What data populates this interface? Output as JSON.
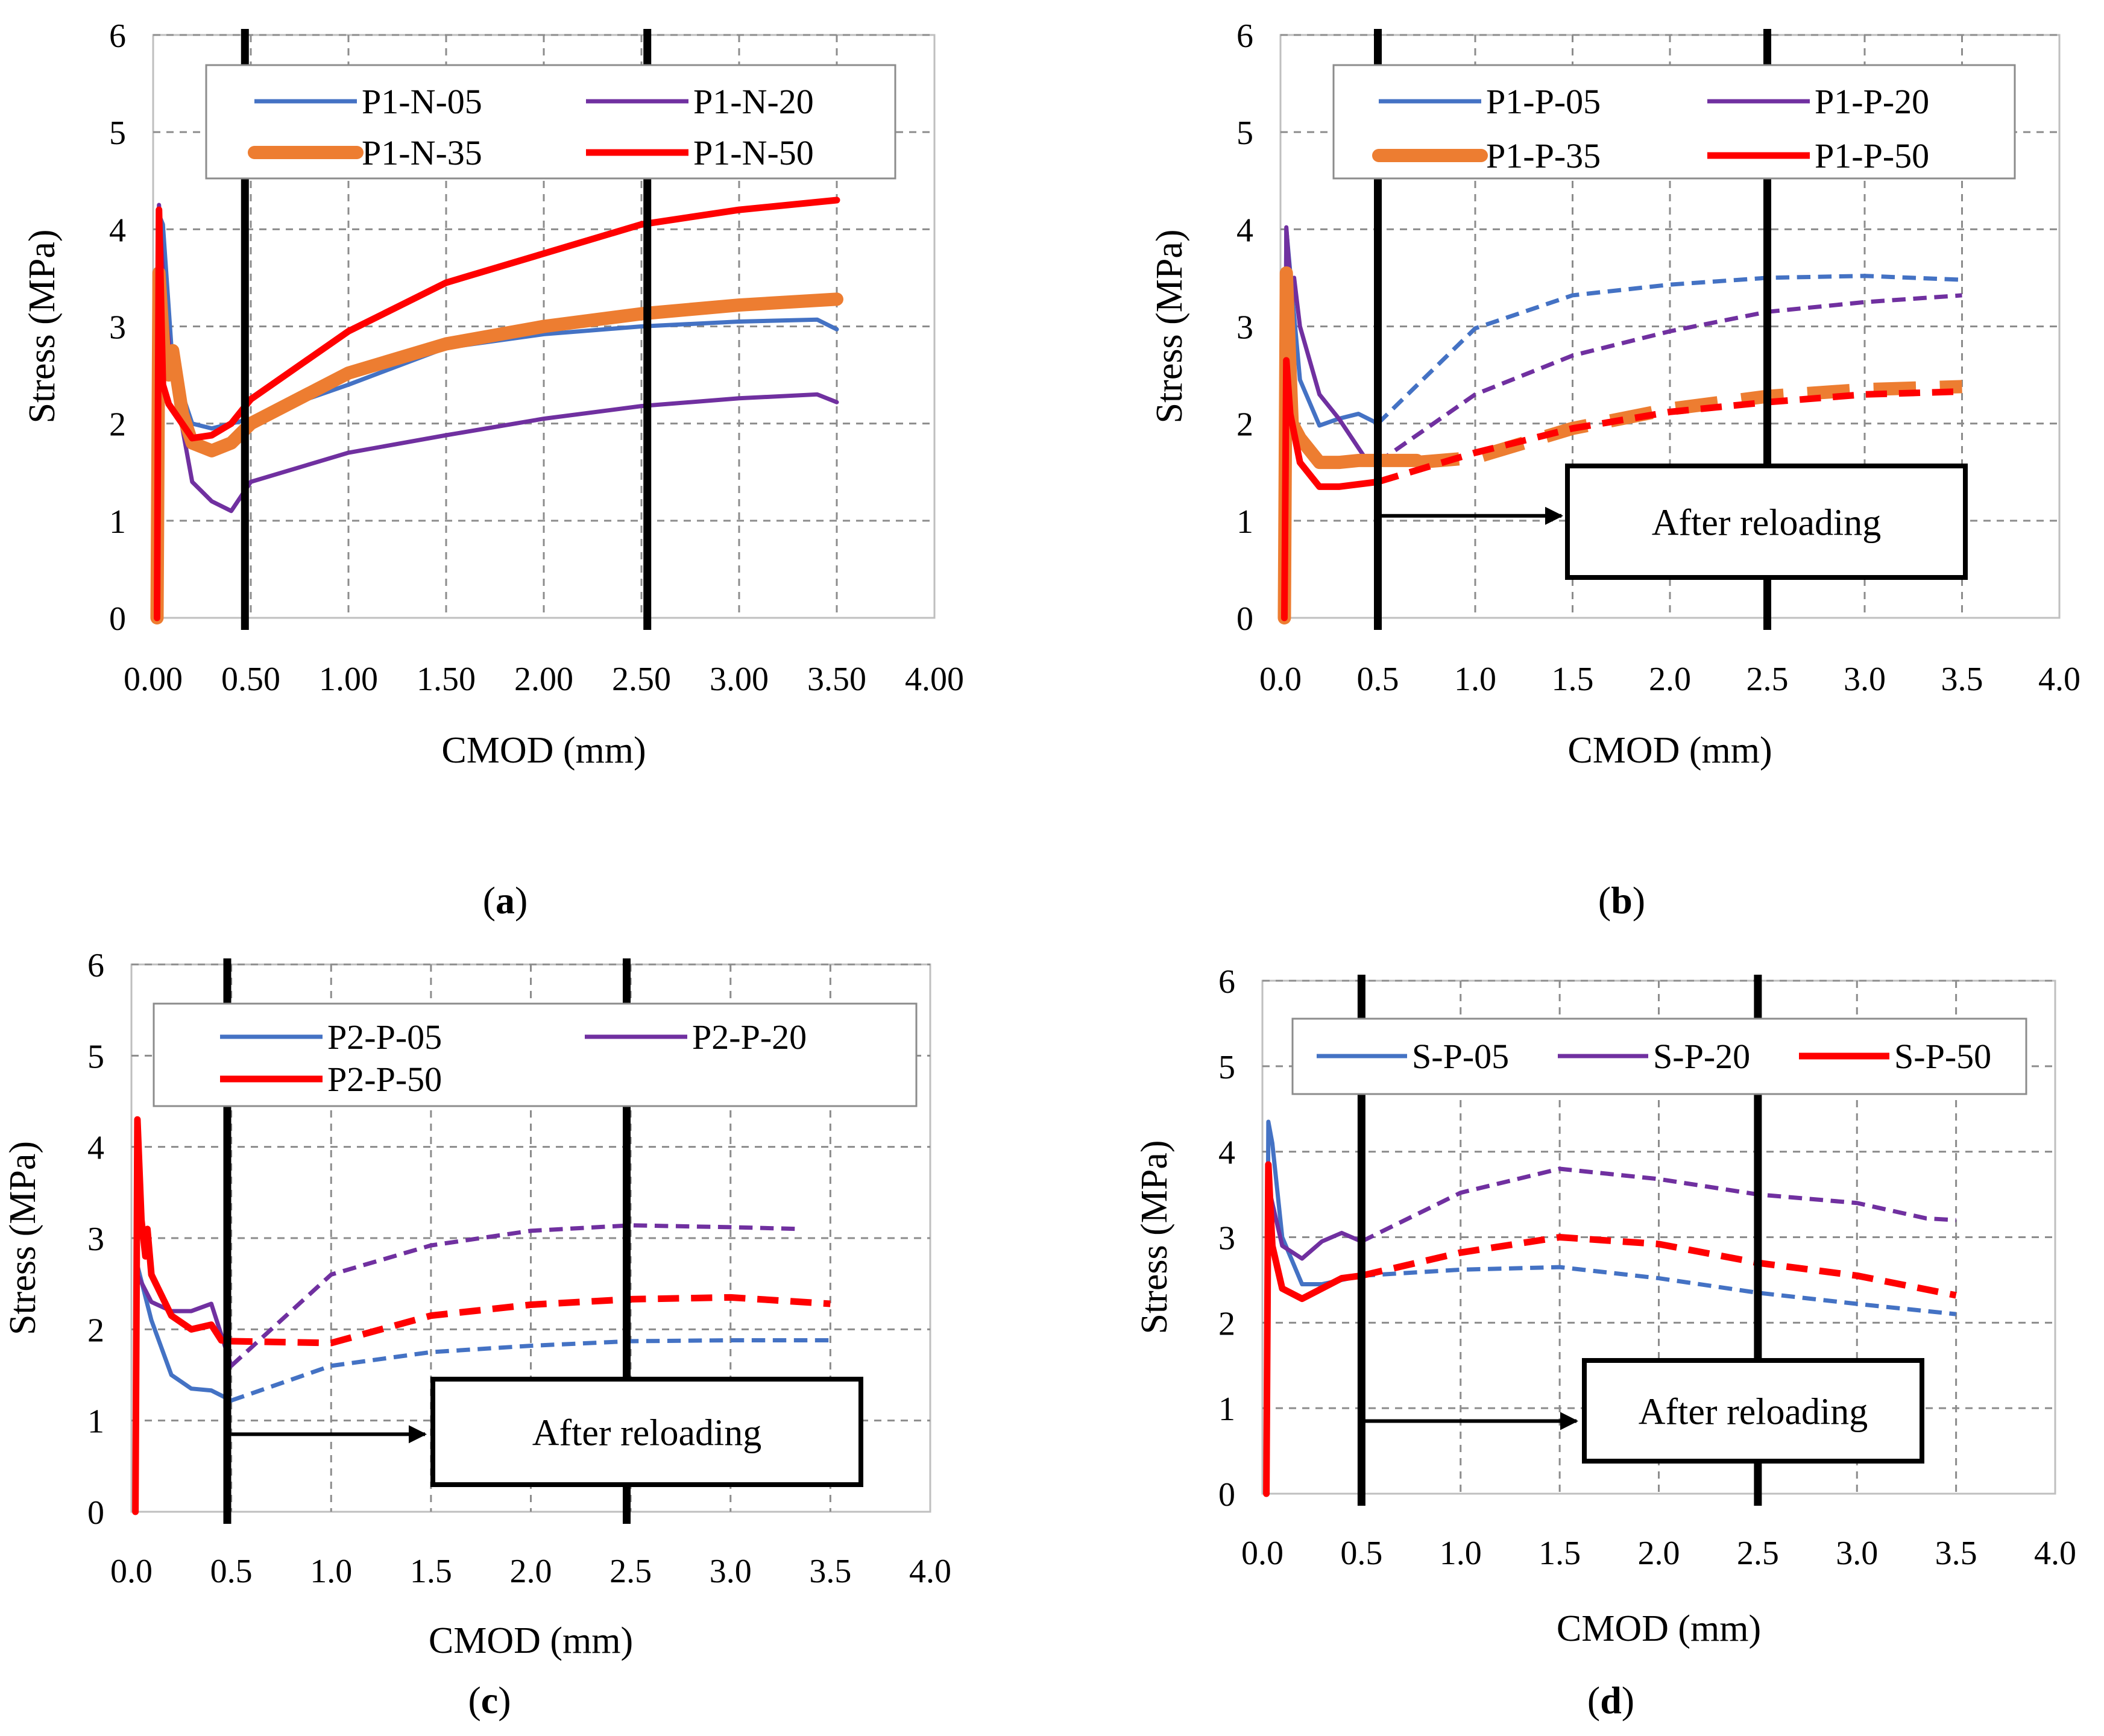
{
  "colors": {
    "blue": "#4472C4",
    "purple": "#7030A0",
    "orange": "#ED7D31",
    "red": "#FF0000",
    "grid": "#8C8C8C",
    "axis": "#BFBFBF",
    "marker": "#000000"
  },
  "chart_data": [
    {
      "panel_label": "a",
      "type": "line",
      "xlabel": "CMOD (mm)",
      "ylabel": "Stress (MPa)",
      "xlim": [
        0,
        4
      ],
      "ylim": [
        0,
        6
      ],
      "xticks": [
        "0.00",
        "0.50",
        "1.00",
        "1.50",
        "2.00",
        "2.50",
        "3.00",
        "3.50",
        "4.00"
      ],
      "yticks": [
        "0",
        "1",
        "2",
        "3",
        "4",
        "5",
        "6"
      ],
      "grid": true,
      "legend_columns": 2,
      "vertical_markers": [
        0.47,
        2.53
      ],
      "annotation": null,
      "series": [
        {
          "name": "P1-N-05",
          "color": "blue",
          "width": "thin",
          "points": [
            [
              0.02,
              0
            ],
            [
              0.03,
              4.15
            ],
            [
              0.05,
              4.05
            ],
            [
              0.1,
              2.6
            ],
            [
              0.2,
              2.0
            ],
            [
              0.3,
              1.95
            ],
            [
              0.4,
              2.0
            ],
            [
              0.5,
              2.05
            ],
            [
              1.0,
              2.4
            ],
            [
              1.5,
              2.78
            ],
            [
              2.0,
              2.92
            ],
            [
              2.5,
              3.0
            ],
            [
              3.0,
              3.05
            ],
            [
              3.4,
              3.07
            ],
            [
              3.5,
              2.97
            ]
          ]
        },
        {
          "name": "P1-N-20",
          "color": "purple",
          "width": "thin",
          "points": [
            [
              0.02,
              0
            ],
            [
              0.03,
              4.25
            ],
            [
              0.06,
              3.2
            ],
            [
              0.1,
              2.5
            ],
            [
              0.2,
              1.4
            ],
            [
              0.3,
              1.2
            ],
            [
              0.4,
              1.1
            ],
            [
              0.5,
              1.4
            ],
            [
              1.0,
              1.7
            ],
            [
              1.5,
              1.88
            ],
            [
              2.0,
              2.05
            ],
            [
              2.5,
              2.18
            ],
            [
              3.0,
              2.26
            ],
            [
              3.4,
              2.3
            ],
            [
              3.5,
              2.22
            ]
          ]
        },
        {
          "name": "P1-N-35",
          "color": "orange",
          "width": "thick",
          "points": [
            [
              0.02,
              0
            ],
            [
              0.03,
              3.55
            ],
            [
              0.06,
              2.6
            ],
            [
              0.08,
              2.5
            ],
            [
              0.1,
              2.75
            ],
            [
              0.15,
              2.1
            ],
            [
              0.2,
              1.8
            ],
            [
              0.3,
              1.72
            ],
            [
              0.4,
              1.8
            ],
            [
              0.45,
              1.9
            ],
            [
              0.5,
              2.0
            ],
            [
              1.0,
              2.52
            ],
            [
              1.5,
              2.82
            ],
            [
              2.0,
              3.0
            ],
            [
              2.5,
              3.13
            ],
            [
              3.0,
              3.22
            ],
            [
              3.5,
              3.28
            ]
          ]
        },
        {
          "name": "P1-N-50",
          "color": "red",
          "width": "medium",
          "points": [
            [
              0.02,
              0
            ],
            [
              0.03,
              4.2
            ],
            [
              0.05,
              2.4
            ],
            [
              0.08,
              2.2
            ],
            [
              0.2,
              1.85
            ],
            [
              0.3,
              1.88
            ],
            [
              0.4,
              2.0
            ],
            [
              0.5,
              2.25
            ],
            [
              1.0,
              2.95
            ],
            [
              1.5,
              3.45
            ],
            [
              2.0,
              3.75
            ],
            [
              2.5,
              4.05
            ],
            [
              3.0,
              4.2
            ],
            [
              3.5,
              4.3
            ]
          ]
        }
      ]
    },
    {
      "panel_label": "b",
      "type": "line",
      "xlabel": "CMOD (mm)",
      "ylabel": "Stress (MPa)",
      "xlim": [
        0,
        4
      ],
      "ylim": [
        0,
        6
      ],
      "xticks": [
        "0.0",
        "0.5",
        "1.0",
        "1.5",
        "2.0",
        "2.5",
        "3.0",
        "3.5",
        "4.0"
      ],
      "yticks": [
        "0",
        "1",
        "2",
        "3",
        "4",
        "5",
        "6"
      ],
      "grid": true,
      "legend_columns": 2,
      "vertical_markers": [
        0.5,
        2.5
      ],
      "annotation": {
        "text": "After reloading"
      },
      "series": [
        {
          "name": "P1-P-05",
          "color": "blue",
          "width": "thin",
          "points": [
            [
              0.02,
              0
            ],
            [
              0.03,
              4.0
            ],
            [
              0.1,
              2.45
            ],
            [
              0.2,
              1.98
            ],
            [
              0.3,
              2.05
            ],
            [
              0.4,
              2.1
            ],
            [
              0.5,
              2.0
            ]
          ],
          "reload_points": [
            [
              0.5,
              2.0
            ],
            [
              1.0,
              2.98
            ],
            [
              1.5,
              3.32
            ],
            [
              2.0,
              3.43
            ],
            [
              2.5,
              3.5
            ],
            [
              3.0,
              3.52
            ],
            [
              3.5,
              3.48
            ]
          ]
        },
        {
          "name": "P1-P-20",
          "color": "purple",
          "width": "thin",
          "points": [
            [
              0.02,
              0
            ],
            [
              0.03,
              4.02
            ],
            [
              0.06,
              3.2
            ],
            [
              0.07,
              3.5
            ],
            [
              0.1,
              3.0
            ],
            [
              0.2,
              2.3
            ],
            [
              0.3,
              2.05
            ],
            [
              0.45,
              1.6
            ]
          ],
          "reload_points": [
            [
              0.5,
              1.6
            ],
            [
              1.0,
              2.3
            ],
            [
              1.5,
              2.7
            ],
            [
              2.0,
              2.95
            ],
            [
              2.5,
              3.15
            ],
            [
              3.0,
              3.25
            ],
            [
              3.5,
              3.32
            ]
          ]
        },
        {
          "name": "P1-P-35",
          "color": "orange",
          "width": "thick",
          "points": [
            [
              0.02,
              0
            ],
            [
              0.03,
              3.55
            ],
            [
              0.06,
              2.0
            ],
            [
              0.1,
              1.85
            ],
            [
              0.2,
              1.6
            ],
            [
              0.3,
              1.6
            ],
            [
              0.4,
              1.62
            ],
            [
              0.5,
              1.62
            ],
            [
              0.7,
              1.62
            ]
          ],
          "reload_points": [
            [
              0.7,
              1.6
            ],
            [
              1.0,
              1.65
            ],
            [
              1.5,
              1.95
            ],
            [
              2.0,
              2.15
            ],
            [
              2.5,
              2.28
            ],
            [
              3.0,
              2.35
            ],
            [
              3.5,
              2.38
            ]
          ]
        },
        {
          "name": "P1-P-50",
          "color": "red",
          "width": "medium",
          "points": [
            [
              0.02,
              0
            ],
            [
              0.03,
              2.65
            ],
            [
              0.05,
              2.1
            ],
            [
              0.1,
              1.6
            ],
            [
              0.2,
              1.35
            ],
            [
              0.3,
              1.35
            ],
            [
              0.5,
              1.4
            ]
          ],
          "reload_points": [
            [
              0.5,
              1.4
            ],
            [
              1.0,
              1.7
            ],
            [
              1.5,
              1.95
            ],
            [
              2.0,
              2.12
            ],
            [
              2.5,
              2.22
            ],
            [
              3.0,
              2.3
            ],
            [
              3.5,
              2.33
            ]
          ]
        }
      ]
    },
    {
      "panel_label": "c",
      "type": "line",
      "xlabel": "CMOD (mm)",
      "ylabel": "Stress (MPa)",
      "xlim": [
        0,
        4
      ],
      "ylim": [
        0,
        6
      ],
      "xticks": [
        "0.0",
        "0.5",
        "1.0",
        "1.5",
        "2.0",
        "2.5",
        "3.0",
        "3.5",
        "4.0"
      ],
      "yticks": [
        "0",
        "1",
        "2",
        "3",
        "4",
        "5",
        "6"
      ],
      "grid": true,
      "legend_columns": 2,
      "vertical_markers": [
        0.48,
        2.48
      ],
      "annotation": {
        "text": "After reloading"
      },
      "series": [
        {
          "name": "P2-P-05",
          "color": "blue",
          "width": "thin",
          "points": [
            [
              0.02,
              0
            ],
            [
              0.03,
              2.7
            ],
            [
              0.1,
              2.1
            ],
            [
              0.2,
              1.5
            ],
            [
              0.3,
              1.35
            ],
            [
              0.4,
              1.33
            ],
            [
              0.5,
              1.22
            ]
          ],
          "reload_points": [
            [
              0.5,
              1.22
            ],
            [
              1.0,
              1.6
            ],
            [
              1.5,
              1.75
            ],
            [
              2.0,
              1.82
            ],
            [
              2.5,
              1.87
            ],
            [
              3.0,
              1.88
            ],
            [
              3.5,
              1.88
            ]
          ]
        },
        {
          "name": "P2-P-20",
          "color": "purple",
          "width": "thin",
          "points": [
            [
              0.02,
              0
            ],
            [
              0.03,
              2.6
            ],
            [
              0.1,
              2.3
            ],
            [
              0.2,
              2.2
            ],
            [
              0.3,
              2.2
            ],
            [
              0.4,
              2.28
            ],
            [
              0.5,
              1.6
            ]
          ],
          "reload_points": [
            [
              0.5,
              1.6
            ],
            [
              1.0,
              2.6
            ],
            [
              1.5,
              2.92
            ],
            [
              2.0,
              3.08
            ],
            [
              2.5,
              3.14
            ],
            [
              3.0,
              3.12
            ],
            [
              3.35,
              3.1
            ]
          ]
        },
        {
          "name": "P2-P-50",
          "color": "red",
          "width": "medium",
          "points": [
            [
              0.02,
              0
            ],
            [
              0.03,
              4.3
            ],
            [
              0.05,
              3.2
            ],
            [
              0.07,
              2.8
            ],
            [
              0.08,
              3.1
            ],
            [
              0.1,
              2.6
            ],
            [
              0.2,
              2.15
            ],
            [
              0.3,
              2.0
            ],
            [
              0.4,
              2.05
            ],
            [
              0.45,
              1.88
            ],
            [
              0.5,
              1.87
            ]
          ],
          "reload_points": [
            [
              0.5,
              1.87
            ],
            [
              1.0,
              1.85
            ],
            [
              1.5,
              2.15
            ],
            [
              2.0,
              2.27
            ],
            [
              2.5,
              2.33
            ],
            [
              3.0,
              2.35
            ],
            [
              3.5,
              2.28
            ]
          ]
        }
      ]
    },
    {
      "panel_label": "d",
      "type": "line",
      "xlabel": "CMOD (mm)",
      "ylabel": "Stress (MPa)",
      "xlim": [
        0,
        4
      ],
      "ylim": [
        0,
        6
      ],
      "xticks": [
        "0.0",
        "0.5",
        "1.0",
        "1.5",
        "2.0",
        "2.5",
        "3.0",
        "3.5",
        "4.0"
      ],
      "yticks": [
        "0",
        "1",
        "2",
        "3",
        "4",
        "5",
        "6"
      ],
      "grid": true,
      "legend_columns": 3,
      "vertical_markers": [
        0.5,
        2.5
      ],
      "annotation": {
        "text": "After reloading"
      },
      "series": [
        {
          "name": "S-P-05",
          "color": "blue",
          "width": "thin",
          "points": [
            [
              0.02,
              0
            ],
            [
              0.03,
              4.35
            ],
            [
              0.05,
              4.1
            ],
            [
              0.1,
              3.0
            ],
            [
              0.2,
              2.45
            ],
            [
              0.3,
              2.45
            ],
            [
              0.5,
              2.55
            ]
          ],
          "reload_points": [
            [
              0.5,
              2.55
            ],
            [
              1.0,
              2.62
            ],
            [
              1.5,
              2.65
            ],
            [
              2.0,
              2.52
            ],
            [
              2.5,
              2.35
            ],
            [
              3.0,
              2.22
            ],
            [
              3.5,
              2.1
            ]
          ]
        },
        {
          "name": "S-P-20",
          "color": "purple",
          "width": "thin",
          "points": [
            [
              0.02,
              0
            ],
            [
              0.03,
              3.6
            ],
            [
              0.1,
              2.9
            ],
            [
              0.2,
              2.75
            ],
            [
              0.3,
              2.95
            ],
            [
              0.4,
              3.05
            ],
            [
              0.5,
              2.95
            ]
          ],
          "reload_points": [
            [
              0.5,
              2.95
            ],
            [
              1.0,
              3.52
            ],
            [
              1.5,
              3.8
            ],
            [
              2.0,
              3.68
            ],
            [
              2.5,
              3.5
            ],
            [
              3.0,
              3.4
            ],
            [
              3.35,
              3.22
            ],
            [
              3.5,
              3.2
            ]
          ]
        },
        {
          "name": "S-P-50",
          "color": "red",
          "width": "medium",
          "points": [
            [
              0.02,
              0
            ],
            [
              0.03,
              3.85
            ],
            [
              0.05,
              2.9
            ],
            [
              0.1,
              2.4
            ],
            [
              0.2,
              2.28
            ],
            [
              0.3,
              2.4
            ],
            [
              0.4,
              2.52
            ],
            [
              0.5,
              2.55
            ]
          ],
          "reload_points": [
            [
              0.5,
              2.55
            ],
            [
              1.0,
              2.82
            ],
            [
              1.5,
              3.0
            ],
            [
              2.0,
              2.92
            ],
            [
              2.5,
              2.7
            ],
            [
              3.0,
              2.55
            ],
            [
              3.5,
              2.32
            ]
          ]
        }
      ]
    }
  ]
}
